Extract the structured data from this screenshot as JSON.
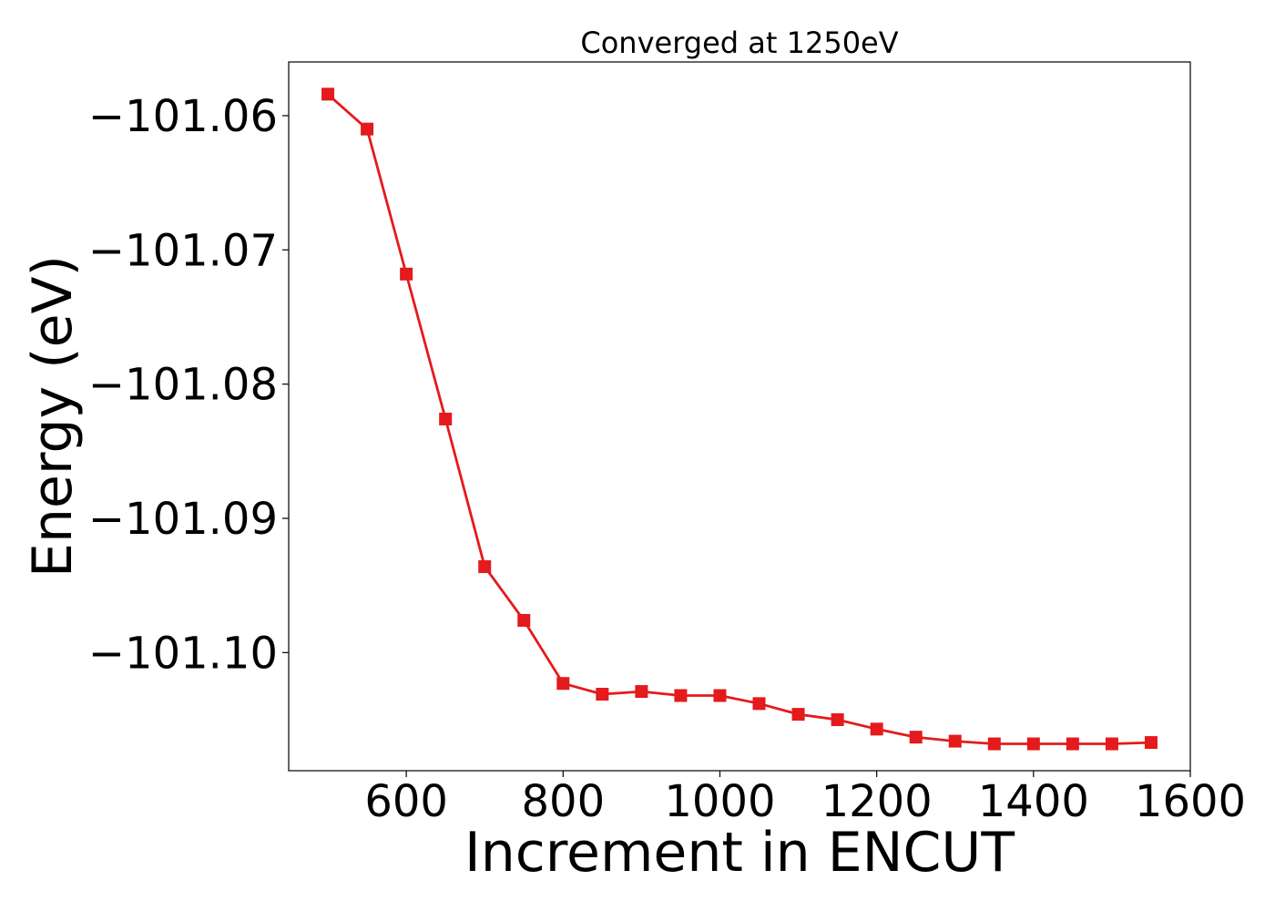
{
  "chart_data": {
    "type": "line",
    "title": "Converged at 1250eV",
    "xlabel": "Increment in ENCUT",
    "ylabel": "Energy (eV)",
    "xlim": [
      450,
      1600
    ],
    "ylim": [
      -101.1088,
      -101.056
    ],
    "xticks": [
      600,
      800,
      1000,
      1200,
      1400,
      1600
    ],
    "xtick_labels": [
      "600",
      "800",
      "1000",
      "1200",
      "1400",
      "1600"
    ],
    "yticks": [
      -101.06,
      -101.07,
      -101.08,
      -101.09,
      -101.1
    ],
    "ytick_labels": [
      "−101.06",
      "−101.07",
      "−101.08",
      "−101.09",
      "−101.10"
    ],
    "grid": false,
    "marker": "square",
    "color": "#e41a1c",
    "series": [
      {
        "x": [
          500,
          550,
          600,
          650,
          700,
          750,
          800,
          850,
          900,
          950,
          1000,
          1050,
          1100,
          1150,
          1200,
          1250,
          1300,
          1350,
          1400,
          1450,
          1500,
          1550
        ],
        "y": [
          -101.0584,
          -101.061,
          -101.0718,
          -101.0826,
          -101.0936,
          -101.0976,
          -101.1023,
          -101.1031,
          -101.1029,
          -101.1032,
          -101.1032,
          -101.1038,
          -101.1046,
          -101.105,
          -101.1057,
          -101.1063,
          -101.1066,
          -101.1068,
          -101.1068,
          -101.1068,
          -101.1068,
          -101.1067
        ]
      }
    ]
  }
}
